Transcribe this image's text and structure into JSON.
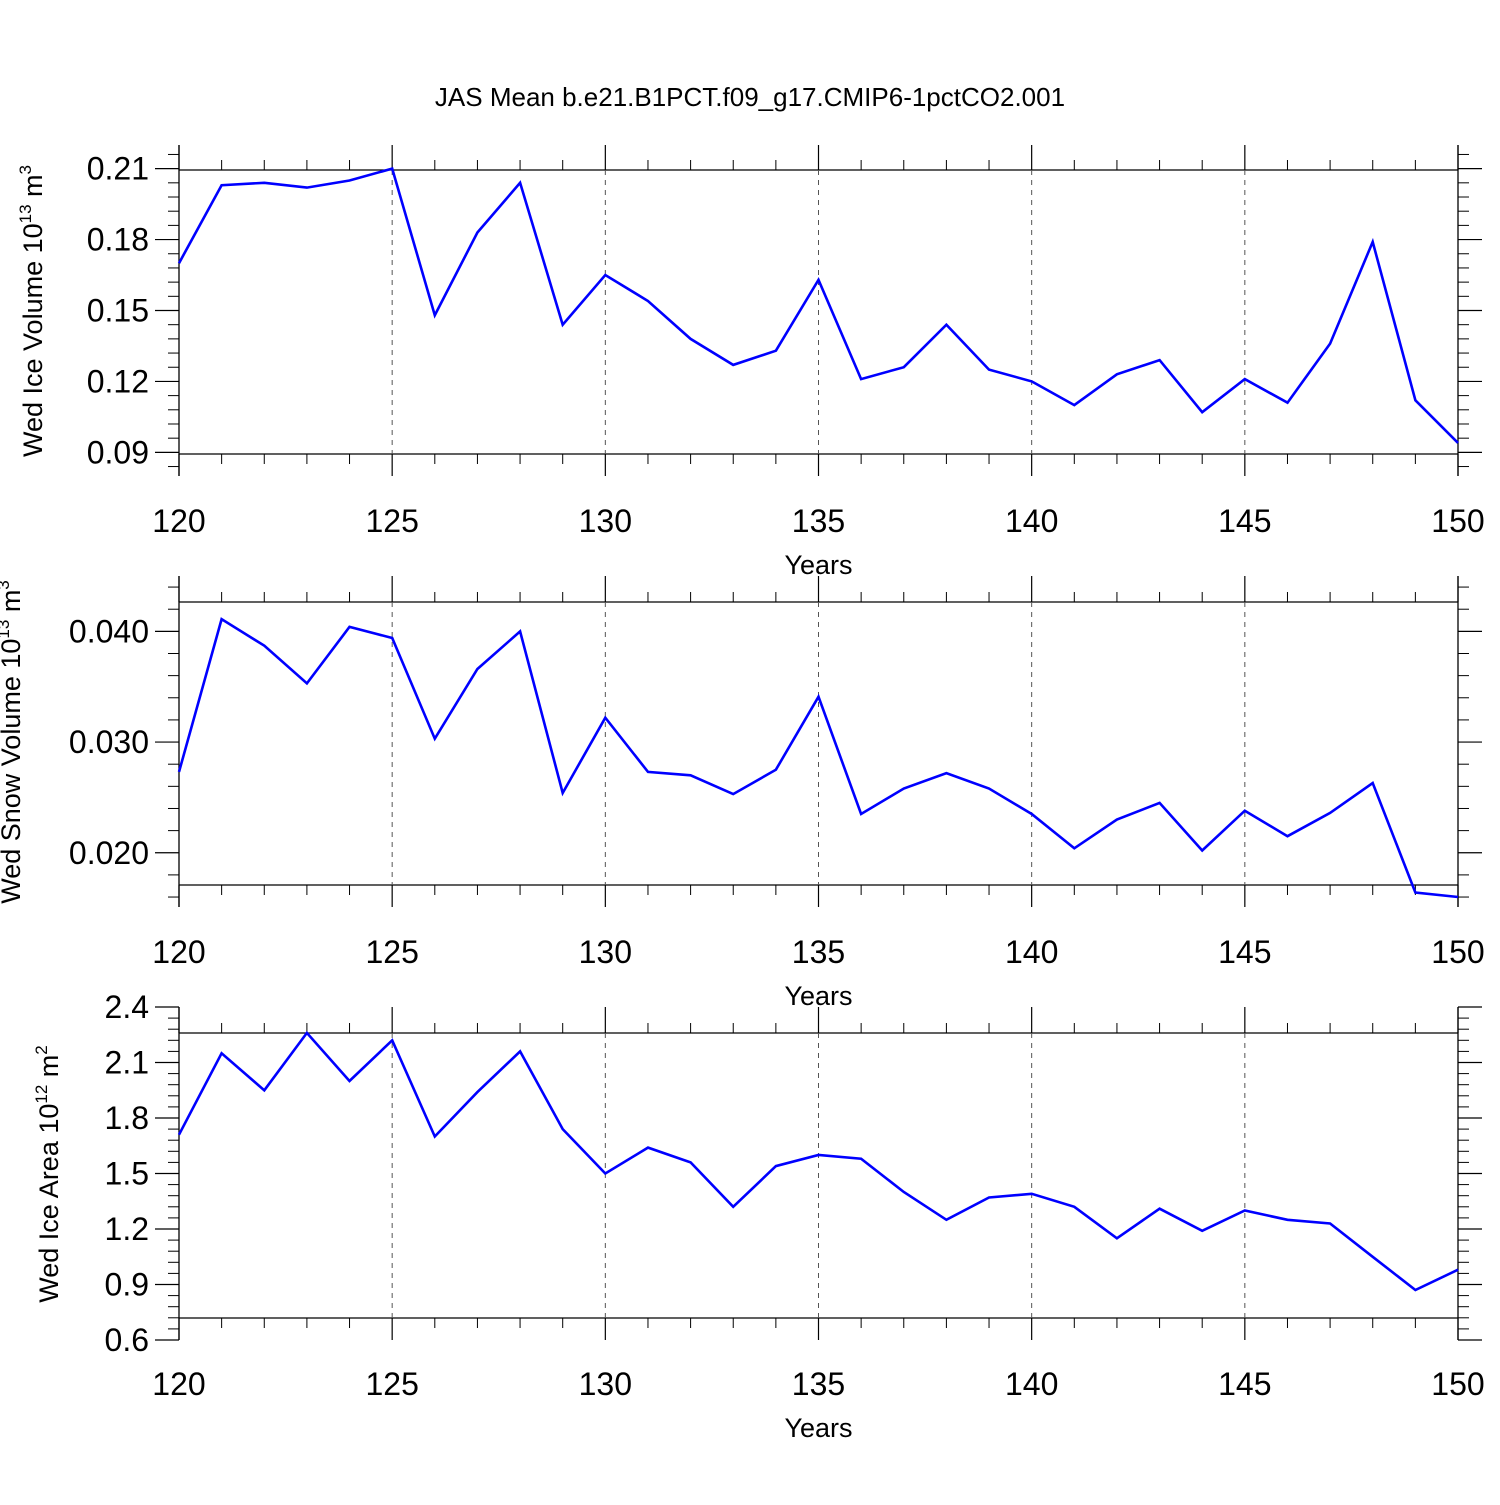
{
  "figure": {
    "title": "JAS Mean b.e21.B1PCT.f09_g17.CMIP6-1pctCO2.001"
  },
  "colors": {
    "line": "#0000ff",
    "axis": "#000000",
    "grid": "#555555"
  },
  "chart_data": [
    {
      "type": "line",
      "id": "ice-volume",
      "xlabel": "Years",
      "ylabel_main": "Wed Ice Volume 10",
      "ylabel_exp": "13",
      "ylabel_unit": " m",
      "ylabel_unit_exp": "3",
      "xlim": [
        120,
        150
      ],
      "ylim": [
        0.08,
        0.22
      ],
      "xticks": [
        120,
        125,
        130,
        135,
        140,
        145,
        150
      ],
      "yticks": [
        0.09,
        0.12,
        0.15,
        0.18,
        0.21
      ],
      "ytick_labels": [
        "0.09",
        "0.12",
        "0.15",
        "0.18",
        "0.21"
      ],
      "vlines": [
        125,
        130,
        135,
        140,
        145
      ],
      "series": [
        {
          "name": "Wed Ice Volume",
          "x": [
            120,
            121,
            122,
            123,
            124,
            125,
            126,
            127,
            128,
            129,
            130,
            131,
            132,
            133,
            134,
            135,
            136,
            137,
            138,
            139,
            140,
            141,
            142,
            143,
            144,
            145,
            146,
            147,
            148,
            149,
            150
          ],
          "values": [
            0.17,
            0.203,
            0.204,
            0.202,
            0.205,
            0.21,
            0.148,
            0.183,
            0.204,
            0.144,
            0.165,
            0.154,
            0.138,
            0.127,
            0.133,
            0.163,
            0.121,
            0.126,
            0.144,
            0.125,
            0.12,
            0.11,
            0.123,
            0.129,
            0.107,
            0.121,
            0.111,
            0.136,
            0.179,
            0.112,
            0.094
          ]
        }
      ]
    },
    {
      "type": "line",
      "id": "snow-volume",
      "xlabel": "Years",
      "ylabel_main": "Wed Snow Volume 10",
      "ylabel_exp": "13",
      "ylabel_unit": " m",
      "ylabel_unit_exp": "3",
      "xlim": [
        120,
        150
      ],
      "ylim": [
        0.0151,
        0.045
      ],
      "xticks": [
        120,
        125,
        130,
        135,
        140,
        145,
        150
      ],
      "yticks": [
        0.02,
        0.03,
        0.04
      ],
      "ytick_labels": [
        "0.020",
        "0.030",
        "0.040"
      ],
      "vlines": [
        125,
        130,
        135,
        140,
        145
      ],
      "series": [
        {
          "name": "Wed Snow Volume",
          "x": [
            120,
            121,
            122,
            123,
            124,
            125,
            126,
            127,
            128,
            129,
            130,
            131,
            132,
            133,
            134,
            135,
            136,
            137,
            138,
            139,
            140,
            141,
            142,
            143,
            144,
            145,
            146,
            147,
            148,
            149,
            150
          ],
          "values": [
            0.0273,
            0.0411,
            0.0387,
            0.0353,
            0.0404,
            0.0394,
            0.0303,
            0.0366,
            0.04,
            0.0254,
            0.0322,
            0.0273,
            0.027,
            0.0253,
            0.0275,
            0.0341,
            0.0235,
            0.0258,
            0.0272,
            0.0258,
            0.0235,
            0.0204,
            0.023,
            0.0245,
            0.0202,
            0.0238,
            0.0215,
            0.0236,
            0.0263,
            0.0164,
            0.016
          ]
        }
      ]
    },
    {
      "type": "line",
      "id": "ice-area",
      "xlabel": "Years",
      "ylabel_main": "Wed Ice Area 10",
      "ylabel_exp": "12",
      "ylabel_unit": " m",
      "ylabel_unit_exp": "2",
      "xlim": [
        120,
        150
      ],
      "ylim": [
        0.6,
        2.4
      ],
      "xticks": [
        120,
        125,
        130,
        135,
        140,
        145,
        150
      ],
      "yticks": [
        0.6,
        0.9,
        1.2,
        1.5,
        1.8,
        2.1,
        2.4
      ],
      "ytick_labels": [
        "0.6",
        "0.9",
        "1.2",
        "1.5",
        "1.8",
        "2.1",
        "2.4"
      ],
      "vlines": [
        125,
        130,
        135,
        140,
        145
      ],
      "series": [
        {
          "name": "Wed Ice Area",
          "x": [
            120,
            121,
            122,
            123,
            124,
            125,
            126,
            127,
            128,
            129,
            130,
            131,
            132,
            133,
            134,
            135,
            136,
            137,
            138,
            139,
            140,
            141,
            142,
            143,
            144,
            145,
            146,
            147,
            148,
            149,
            150
          ],
          "values": [
            1.71,
            2.15,
            1.95,
            2.26,
            2.0,
            2.22,
            1.7,
            1.94,
            2.16,
            1.74,
            1.5,
            1.64,
            1.56,
            1.32,
            1.54,
            1.6,
            1.58,
            1.4,
            1.25,
            1.37,
            1.39,
            1.32,
            1.15,
            1.31,
            1.19,
            1.3,
            1.25,
            1.23,
            1.05,
            0.87,
            0.98
          ]
        }
      ]
    }
  ]
}
